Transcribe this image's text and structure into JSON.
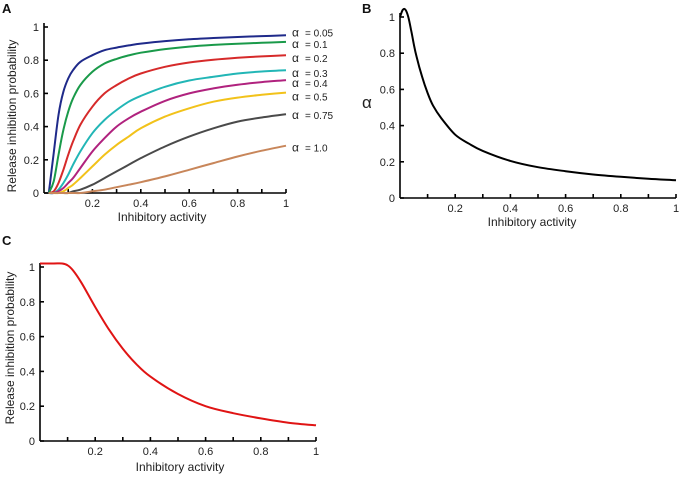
{
  "alpha_symbol": "α",
  "chart_data": [
    {
      "panel": "A",
      "type": "line",
      "xlabel": "Inhibitory activity",
      "ylabel": "Release inhibition probability",
      "xlim": [
        0,
        1
      ],
      "ylim": [
        0,
        1
      ],
      "x_ticks": [
        "0.2",
        "0.4",
        "0.6",
        "0.8",
        "1"
      ],
      "y_ticks": [
        "0",
        "0.2",
        "0.4",
        "0.6",
        "0.8",
        "1"
      ],
      "x": [
        0.02,
        0.04,
        0.06,
        0.08,
        0.1,
        0.12,
        0.15,
        0.2,
        0.25,
        0.3,
        0.35,
        0.4,
        0.5,
        0.6,
        0.7,
        0.8,
        0.9,
        1.0
      ],
      "series": [
        {
          "name": "= 0.05",
          "color": "#1f2a8a",
          "values": [
            0.0,
            0.24,
            0.47,
            0.61,
            0.69,
            0.74,
            0.79,
            0.83,
            0.86,
            0.876,
            0.889,
            0.9,
            0.915,
            0.926,
            0.934,
            0.94,
            0.945,
            0.95
          ]
        },
        {
          "name": "= 0.1",
          "color": "#1a9a4a",
          "values": [
            0.0,
            0.07,
            0.23,
            0.38,
            0.49,
            0.57,
            0.65,
            0.73,
            0.78,
            0.808,
            0.829,
            0.845,
            0.867,
            0.882,
            0.892,
            0.899,
            0.905,
            0.91
          ]
        },
        {
          "name": "= 0.2",
          "color": "#d62a2a",
          "values": [
            0.0,
            0.01,
            0.06,
            0.14,
            0.23,
            0.31,
            0.41,
            0.52,
            0.6,
            0.65,
            0.69,
            0.72,
            0.76,
            0.786,
            0.803,
            0.815,
            0.823,
            0.83
          ]
        },
        {
          "name": "= 0.3",
          "color": "#22b6b6",
          "values": [
            0.0,
            0.0,
            0.02,
            0.06,
            0.11,
            0.17,
            0.25,
            0.36,
            0.44,
            0.5,
            0.55,
            0.585,
            0.64,
            0.678,
            0.7,
            0.72,
            0.732,
            0.74
          ]
        },
        {
          "name": "= 0.4",
          "color": "#b0227e",
          "values": [
            0.0,
            0.0,
            0.01,
            0.03,
            0.06,
            0.09,
            0.15,
            0.25,
            0.33,
            0.4,
            0.45,
            0.49,
            0.555,
            0.6,
            0.63,
            0.652,
            0.668,
            0.68
          ]
        },
        {
          "name": "= 0.5",
          "color": "#f2c21a",
          "values": [
            0.0,
            0.0,
            0.0,
            0.01,
            0.03,
            0.05,
            0.09,
            0.16,
            0.23,
            0.29,
            0.34,
            0.39,
            0.46,
            0.51,
            0.55,
            0.575,
            0.592,
            0.605
          ]
        },
        {
          "name": "= 0.75",
          "color": "#4a4a4a",
          "values": [
            0.0,
            0.0,
            0.0,
            0.0,
            0.0,
            0.01,
            0.02,
            0.05,
            0.09,
            0.13,
            0.17,
            0.21,
            0.28,
            0.34,
            0.39,
            0.43,
            0.455,
            0.475
          ]
        },
        {
          "name": "= 1.0",
          "color": "#c8865a",
          "values": [
            0.0,
            0.0,
            0.0,
            0.0,
            0.0,
            0.0,
            0.0,
            0.01,
            0.02,
            0.035,
            0.05,
            0.065,
            0.1,
            0.14,
            0.18,
            0.22,
            0.255,
            0.285
          ]
        }
      ]
    },
    {
      "panel": "B",
      "type": "line",
      "xlabel": "Inhibitory activity",
      "ylabel": "α",
      "xlim": [
        0,
        1
      ],
      "ylim": [
        0,
        1
      ],
      "x_ticks": [
        "0.2",
        "0.4",
        "0.6",
        "0.8",
        "1"
      ],
      "y_ticks": [
        "0",
        "0.2",
        "0.4",
        "0.6",
        "0.8",
        "1"
      ],
      "x": [
        0.0,
        0.01,
        0.02,
        0.03,
        0.04,
        0.05,
        0.06,
        0.08,
        0.1,
        0.12,
        0.15,
        0.2,
        0.25,
        0.3,
        0.4,
        0.5,
        0.6,
        0.7,
        0.8,
        0.9,
        1.0
      ],
      "series": [
        {
          "name": "alpha",
          "color": "#000000",
          "values": [
            1.0,
            1.04,
            1.04,
            1.0,
            0.93,
            0.85,
            0.78,
            0.67,
            0.58,
            0.51,
            0.44,
            0.35,
            0.3,
            0.26,
            0.205,
            0.17,
            0.148,
            0.13,
            0.117,
            0.106,
            0.098
          ]
        }
      ]
    },
    {
      "panel": "C",
      "type": "line",
      "xlabel": "Inhibitory activity",
      "ylabel": "Release inhibition probability",
      "xlim": [
        0,
        1
      ],
      "ylim": [
        0,
        1
      ],
      "x_ticks": [
        "0.2",
        "0.4",
        "0.6",
        "0.8",
        "1"
      ],
      "y_ticks": [
        "0",
        "0.2",
        "0.4",
        "0.6",
        "0.8",
        "1"
      ],
      "x": [
        0.0,
        0.05,
        0.08,
        0.1,
        0.12,
        0.15,
        0.2,
        0.25,
        0.3,
        0.35,
        0.4,
        0.5,
        0.6,
        0.7,
        0.8,
        0.9,
        1.0
      ],
      "series": [
        {
          "name": "release",
          "color": "#e01414",
          "values": [
            1.02,
            1.02,
            1.02,
            1.01,
            0.98,
            0.91,
            0.77,
            0.64,
            0.53,
            0.44,
            0.37,
            0.27,
            0.2,
            0.16,
            0.13,
            0.105,
            0.09
          ]
        }
      ]
    }
  ]
}
